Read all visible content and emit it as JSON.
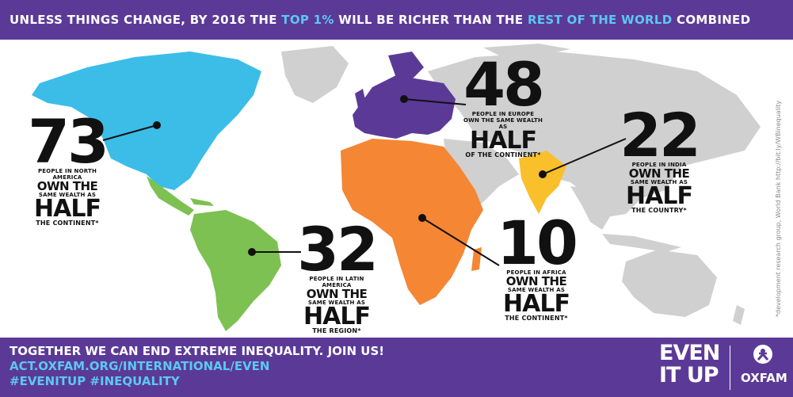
{
  "header": {
    "part1": "UNLESS THINGS CHANGE, BY 2016 THE ",
    "highlight1": "TOP 1%",
    "part2": " WILL BE RICHER THAN THE ",
    "highlight2": "REST OF THE WORLD",
    "part3": " COMBINED"
  },
  "colors": {
    "purple": "#5b3a97",
    "blue_highlight": "#5cc8f0",
    "north_america": "#3bbde8",
    "latin_america": "#7cc151",
    "europe": "#5b3a97",
    "africa": "#f58634",
    "india": "#f9c02c",
    "land_gray": "#d0d0d0"
  },
  "stats": {
    "north_america": {
      "number": "73",
      "line1": "PEOPLE IN NORTH AMERICA",
      "own": "OWN THE",
      "same": "SAME WEALTH AS",
      "half": "HALF",
      "tail": "THE CONTINENT*"
    },
    "latin_america": {
      "number": "32",
      "line1": "PEOPLE IN LATIN AMERICA",
      "own": "OWN THE",
      "same": "SAME WEALTH AS",
      "half": "HALF",
      "tail": "THE REGION*"
    },
    "europe": {
      "number": "48",
      "line1": "PEOPLE IN EUROPE",
      "own": "OWN THE SAME WEALTH AS",
      "half": "HALF",
      "tail": "OF THE CONTINENT*"
    },
    "india": {
      "number": "22",
      "line1": "PEOPLE IN INDIA",
      "own": "OWN THE",
      "same": "SAME WEALTH AS",
      "half": "HALF",
      "tail": "THE COUNTRY*"
    },
    "africa": {
      "number": "10",
      "line1": "PEOPLE IN AFRICA",
      "own": "OWN THE",
      "same": "SAME WEALTH AS",
      "half": "HALF",
      "tail": "THE CONTINENT*"
    }
  },
  "source_note": "*development research group, World Bank http://bit.ly/WBinequality",
  "footer": {
    "line1": "TOGETHER WE CAN END EXTREME INEQUALITY. JOIN US!",
    "line2": "ACT.OXFAM.ORG/INTERNATIONAL/EVEN",
    "line3": "#EVENITUP #INEQUALITY",
    "brand_line1": "EVEN",
    "brand_line2": "IT UP",
    "org_name": "OXFAM"
  }
}
